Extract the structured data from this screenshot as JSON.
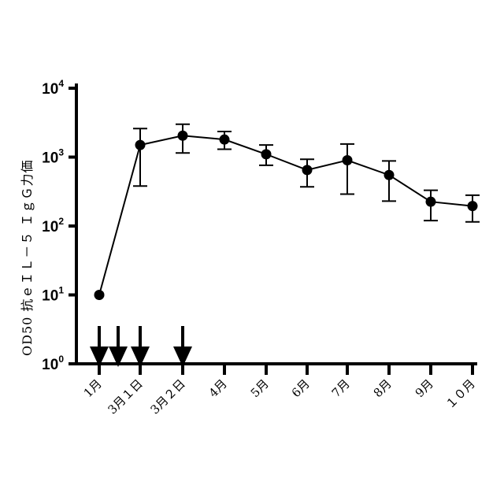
{
  "chart_data": {
    "type": "line",
    "title": "",
    "xlabel": "",
    "ylabel": "OD50 抗ｅＩＬ－５ ＩｇＧ力価",
    "yscale": "log10",
    "ylim": [
      1,
      10000
    ],
    "yticks": [
      {
        "base": "10",
        "exp": "0",
        "value": 1
      },
      {
        "base": "10",
        "exp": "1",
        "value": 10
      },
      {
        "base": "10",
        "exp": "2",
        "value": 100
      },
      {
        "base": "10",
        "exp": "3",
        "value": 1000
      },
      {
        "base": "10",
        "exp": "4",
        "value": 10000
      }
    ],
    "categories": [
      "1月",
      "3月１日",
      "3月２日",
      "4月",
      "5月",
      "6月",
      "7月",
      "8月",
      "9月",
      "１０月"
    ],
    "series": [
      {
        "name": "",
        "color": "#000000",
        "points": [
          {
            "x": "1月",
            "y": 10
          },
          {
            "x": "3月１日",
            "y": 1500,
            "err_low": 380,
            "err_high": 2600
          },
          {
            "x": "3月２日",
            "y": 2050,
            "err_low": 1150,
            "err_high": 3000
          },
          {
            "x": "4月",
            "y": 1800,
            "err_low": 1300,
            "err_high": 2350
          },
          {
            "x": "5月",
            "y": 1100,
            "err_low": 760,
            "err_high": 1500
          },
          {
            "x": "6月",
            "y": 650,
            "err_low": 370,
            "err_high": 930
          },
          {
            "x": "7月",
            "y": 900,
            "err_low": 290,
            "err_high": 1550
          },
          {
            "x": "8月",
            "y": 550,
            "err_low": 230,
            "err_high": 880
          },
          {
            "x": "9月",
            "y": 225,
            "err_low": 120,
            "err_high": 330
          },
          {
            "x": "１０月",
            "y": 195,
            "err_low": 115,
            "err_high": 280
          }
        ]
      }
    ],
    "immunization_arrows": [
      "1月",
      "2月中旬",
      "3月１日",
      "3月２日"
    ],
    "grid": false,
    "legend": "none"
  }
}
